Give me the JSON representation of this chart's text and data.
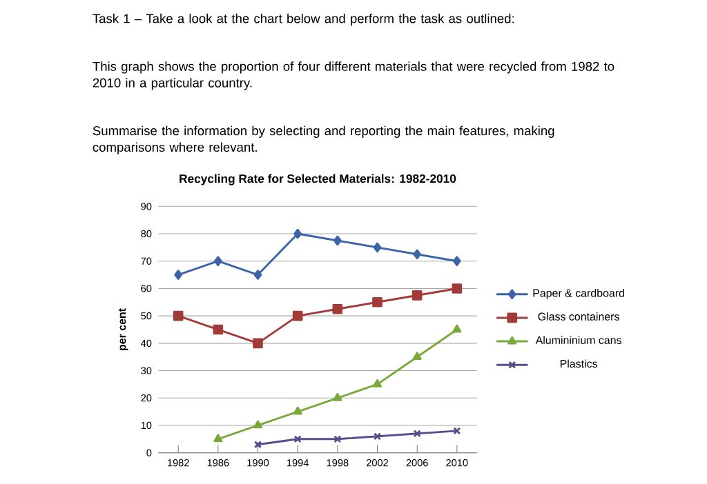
{
  "chart_data": {
    "type": "line",
    "title": "Recycling Rate for Selected Materials: 1982-2010",
    "annotations": [
      "Task 1 – Take a look at the chart below and perform the task as outlined:",
      "This graph shows the proportion of four different materials that were recycled from 1982 to 2010 in a particular country.",
      "Summarise the information by selecting and reporting the main features, making comparisons where relevant."
    ],
    "ylabel": "per cent",
    "categories": [
      "1982",
      "1986",
      "1990",
      "1994",
      "1998",
      "2002",
      "2006",
      "2010"
    ],
    "ylim": [
      0,
      90
    ],
    "yticks": [
      0,
      10,
      20,
      30,
      40,
      50,
      60,
      70,
      80,
      90
    ],
    "grid": "y",
    "legend": "right",
    "series": [
      {
        "name": "Paper & cardboard",
        "color": "#3b64a8",
        "marker": "diamond",
        "values": [
          65,
          70,
          65,
          80,
          77.5,
          75,
          72.5,
          70
        ]
      },
      {
        "name": "Glass containers",
        "color": "#a33a3a",
        "marker": "square",
        "values": [
          50,
          45,
          40,
          50,
          52.5,
          55,
          57.5,
          60
        ]
      },
      {
        "name": "Alumininium cans",
        "color": "#7aa83b",
        "marker": "triangle",
        "values": [
          null,
          5,
          10,
          15,
          20,
          25,
          35,
          45
        ]
      },
      {
        "name": "Plastics",
        "color": "#5b4a8c",
        "marker": "cross",
        "values": [
          null,
          null,
          3,
          5,
          5,
          6,
          7,
          8
        ]
      }
    ]
  }
}
